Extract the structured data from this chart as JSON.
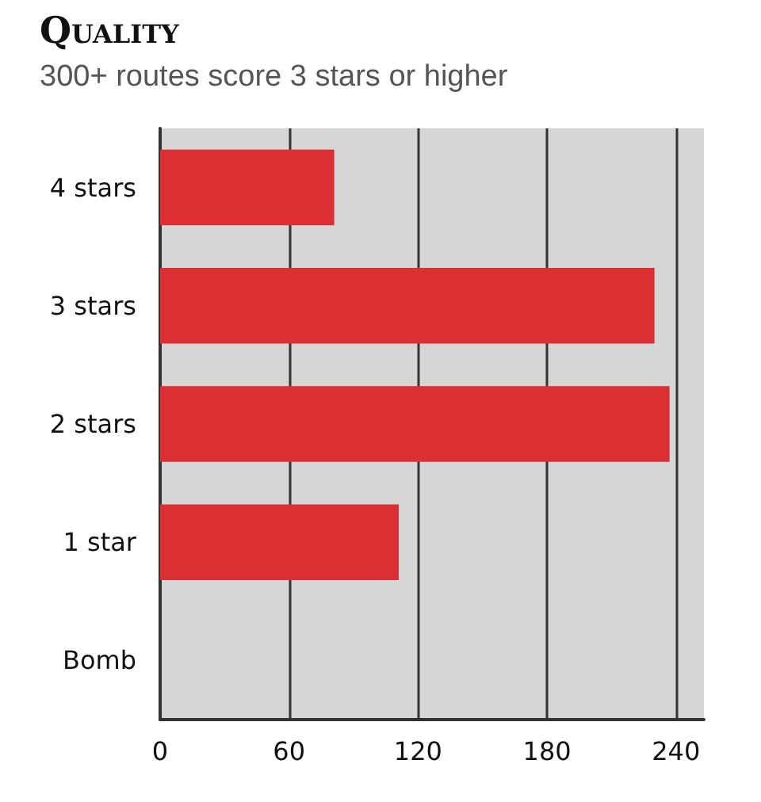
{
  "chart_data": {
    "type": "bar",
    "orientation": "horizontal",
    "title": "Quality",
    "subtitle": "300+ routes score 3 stars or higher",
    "categories": [
      "4 stars",
      "3 stars",
      "2 stars",
      "1 star",
      "Bomb"
    ],
    "values": [
      81,
      230,
      237,
      111,
      0
    ],
    "color": "#dc2f34",
    "xlim": [
      0,
      253
    ],
    "xticks": [
      0,
      60,
      120,
      180,
      240
    ],
    "grid": "x"
  }
}
